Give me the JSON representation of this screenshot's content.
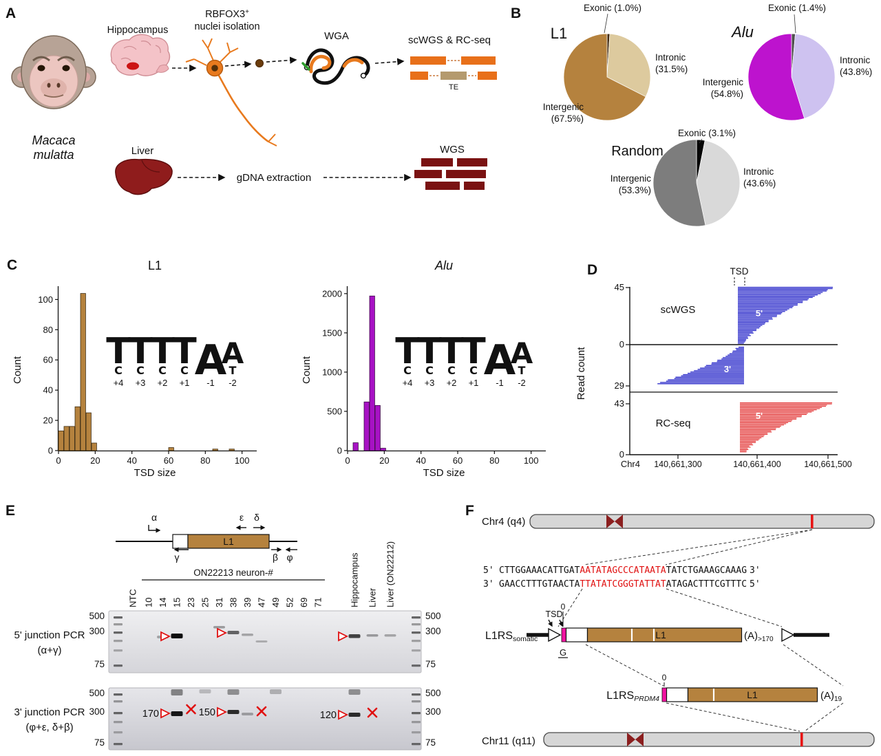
{
  "panels": {
    "A": "A",
    "B": "B",
    "C": "C",
    "D": "D",
    "E": "E",
    "F": "F"
  },
  "panelA": {
    "species_line1": "Macaca",
    "species_line2": "mulatta",
    "hippocampus": "Hippocampus",
    "rbfox3_name": "RBFOX3",
    "rbfox3_sup": "+",
    "rbfox3_line2": "nuclei isolation",
    "wga": "WGA",
    "scwgs_rcseq": "scWGS & RC-seq",
    "te": "TE",
    "liver": "Liver",
    "gdna": "gDNA extraction",
    "wgs": "WGS"
  },
  "panelB": {
    "pies": [
      {
        "exonic": "Exonic (1.0%)",
        "intronic_1": "Intronic",
        "intronic_2": "(31.5%)",
        "intergenic_1": "Intergenic",
        "intergenic_2": "(67.5%)"
      },
      {
        "exonic": "Exonic (1.4%)",
        "intronic_1": "Intronic",
        "intronic_2": "(43.8%)",
        "intergenic_1": "Intergenic",
        "intergenic_2": "(54.8%)"
      },
      {
        "exonic": "Exonic (3.1%)",
        "intronic_1": "Intronic",
        "intronic_2": "(43.6%)",
        "intergenic_1": "Intergenic",
        "intergenic_2": "(53.3%)"
      }
    ]
  },
  "panelC": {
    "logo_positions": [
      "+4",
      "+3",
      "+2",
      "+1",
      "-1",
      "-2"
    ],
    "logo_stack": [
      [
        [
          "T",
          52
        ],
        [
          "C",
          16
        ]
      ],
      [
        [
          "T",
          52
        ],
        [
          "C",
          16
        ]
      ],
      [
        [
          "T",
          52
        ],
        [
          "C",
          16
        ]
      ],
      [
        [
          "T",
          52
        ],
        [
          "C",
          16
        ]
      ],
      [
        [
          "A",
          60
        ]
      ],
      [
        [
          "A",
          42
        ],
        [
          "T",
          16
        ]
      ]
    ]
  },
  "panelD": {
    "ylabel": "Read count",
    "zero": "0"
  },
  "panelE": {
    "header": "ON22213 neuron-#",
    "lanes": [
      "NTC",
      "10",
      "14",
      "15",
      "23",
      "25",
      "31",
      "38",
      "39",
      "47",
      "49",
      "52",
      "69",
      "71",
      "Hippocampus",
      "Liver",
      "Liver (ON22212)"
    ],
    "ladder": [
      "500",
      "300",
      "75"
    ],
    "row1_label1": "5' junction PCR",
    "row1_label2": "(α+γ)",
    "row2_label1": "3' junction PCR",
    "row2_label2": "(φ+ε, δ+β)",
    "primers": {
      "alpha": "α",
      "gamma": "γ",
      "epsilon": "ε",
      "delta": "δ",
      "beta": "β",
      "phi": "φ",
      "l1": "L1"
    },
    "gel1_bands": [
      {
        "lane": "14",
        "y": 199,
        "h": 4,
        "o": 0.3
      },
      {
        "lane": "15",
        "y": 196,
        "h": 7,
        "o": 1
      },
      {
        "lane": "31",
        "y": 185,
        "h": 3.5,
        "o": 0.35
      },
      {
        "lane": "38",
        "y": 192,
        "h": 5,
        "o": 0.6
      },
      {
        "lane": "39",
        "y": 196,
        "h": 3.5,
        "o": 0.3
      },
      {
        "lane": "47",
        "y": 206,
        "h": 3,
        "o": 0.25
      },
      {
        "lane": "Hippocampus",
        "y": 197,
        "h": 5.5,
        "o": 0.75
      },
      {
        "lane": "Liver",
        "y": 197,
        "h": 3.5,
        "o": 0.35
      },
      {
        "lane": "Liver (ON22212)",
        "y": 197,
        "h": 3.5,
        "o": 0.3
      }
    ],
    "gel1_arrows": [
      {
        "lane": "15",
        "y": 200
      },
      {
        "lane": "38",
        "y": 195
      },
      {
        "lane": "Hippocampus",
        "y": 200
      }
    ],
    "gel2_bands": [
      {
        "lane": "15",
        "y": 309,
        "h": 7,
        "o": 0.95
      },
      {
        "lane": "15",
        "y": 277,
        "h": 9,
        "o": 0.45
      },
      {
        "lane": "38",
        "y": 307,
        "h": 6,
        "o": 0.85
      },
      {
        "lane": "38",
        "y": 277,
        "h": 8,
        "o": 0.4
      },
      {
        "lane": "39",
        "y": 311,
        "h": 4,
        "o": 0.3
      },
      {
        "lane": "49",
        "y": 277,
        "h": 7,
        "o": 0.25
      },
      {
        "lane": "25",
        "y": 277,
        "h": 6,
        "o": 0.2
      },
      {
        "lane": "Hippocampus",
        "y": 311,
        "h": 6,
        "o": 0.85
      },
      {
        "lane": "Hippocampus",
        "y": 277,
        "h": 8,
        "o": 0.4
      }
    ],
    "gel2_sizes": [
      {
        "label": "170",
        "lane": "15",
        "y": 312
      },
      {
        "label": "150",
        "lane": "38",
        "y": 310
      },
      {
        "label": "120",
        "lane": "Hippocampus",
        "y": 314
      }
    ],
    "x_marks": [
      {
        "lane": "23",
        "y": 306
      },
      {
        "lane": "47",
        "y": 309
      },
      {
        "lane": "Liver",
        "y": 311
      }
    ]
  },
  "panelF": {
    "chr4": "Chr4 (q4)",
    "chr11": "Chr11 (q11)",
    "seq_top": {
      "p5": "5'",
      "left": "CTTGGAAACATTGAT",
      "tsd": "AATATAGCCCATAATA",
      "right": "TATCTGAAAGCAAAG",
      "p3": "3'"
    },
    "seq_bottom": {
      "p3": "3'",
      "left": "GAACCTTTGTAACTA",
      "tsd": "TTATATCGGGTATTAT",
      "right": "ATAGACTTTCGTTTC",
      "p5": "5'"
    },
    "tsd": "TSD",
    "zero1": "0",
    "zero2": "0",
    "g": "G",
    "l1rs": "L1RS",
    "somatic": "somatic",
    "prdm4": "PRDM4",
    "l1a": "L1",
    "l1b": "L1",
    "polyA": "(A)",
    "polyA1_sub": ">170",
    "polyA2_sub": "19"
  },
  "chart_data": [
    {
      "type": "pie",
      "title": "L1",
      "slices": [
        {
          "label": "Exonic",
          "pct": 1.0,
          "color": "#42290e"
        },
        {
          "label": "Intronic",
          "pct": 31.5,
          "color": "#ddca9e"
        },
        {
          "label": "Intergenic",
          "pct": 67.5,
          "color": "#b5823e"
        }
      ],
      "start_angle_deg": 0,
      "clockwise": true
    },
    {
      "type": "pie",
      "title": "Alu",
      "slices": [
        {
          "label": "Exonic",
          "pct": 1.4,
          "color": "#4f4f4f"
        },
        {
          "label": "Intronic",
          "pct": 43.8,
          "color": "#cec2f0"
        },
        {
          "label": "Intergenic",
          "pct": 54.8,
          "color": "#bd13ce"
        }
      ],
      "start_angle_deg": 0,
      "clockwise": true
    },
    {
      "type": "pie",
      "title": "Random",
      "slices": [
        {
          "label": "Exonic",
          "pct": 3.1,
          "color": "#050505"
        },
        {
          "label": "Intronic",
          "pct": 43.6,
          "color": "#d9d9d9"
        },
        {
          "label": "Intergenic",
          "pct": 53.3,
          "color": "#7d7d7d"
        }
      ],
      "start_angle_deg": 0,
      "clockwise": true
    },
    {
      "type": "bar",
      "title": "L1",
      "xlabel": "TSD size",
      "ylabel": "Count",
      "xlim": [
        0,
        105
      ],
      "ylim": [
        0,
        107
      ],
      "xticks": [
        0,
        20,
        40,
        60,
        80,
        100
      ],
      "yticks": [
        0,
        20,
        40,
        60,
        80,
        100
      ],
      "bin_width": 3,
      "color": "#b5823e",
      "edge": "#3d2c12",
      "bins": [
        [
          0,
          13
        ],
        [
          3,
          16
        ],
        [
          6,
          16
        ],
        [
          9,
          29
        ],
        [
          12,
          104
        ],
        [
          15,
          25
        ],
        [
          18,
          5
        ],
        [
          60,
          2
        ],
        [
          84,
          1
        ],
        [
          93,
          1
        ]
      ]
    },
    {
      "type": "bar",
      "title": "Alu",
      "xlabel": "TSD size",
      "ylabel": "Count",
      "xlim": [
        0,
        105
      ],
      "ylim": [
        0,
        2060
      ],
      "xticks": [
        0,
        20,
        40,
        60,
        80,
        100
      ],
      "yticks": [
        0,
        500,
        1000,
        1500,
        2000
      ],
      "bin_width": 3,
      "color": "#a712c4",
      "edge": "#3d0a48",
      "bins": [
        [
          3,
          100
        ],
        [
          9,
          620
        ],
        [
          12,
          1970
        ],
        [
          15,
          575
        ],
        [
          18,
          30
        ]
      ]
    },
    {
      "type": "pileup",
      "annotation": "TSD",
      "region": {
        "chrom": "Chr4",
        "xticks": [
          "140,661,300",
          "140,661,400",
          "140,661,500"
        ]
      },
      "tracks": [
        {
          "name": "scWGS",
          "end": "5'",
          "reads": 45,
          "color": "#2424c8"
        },
        {
          "name": "scWGS",
          "end": "3'",
          "reads": 29,
          "color": "#2424c8"
        },
        {
          "name": "RC-seq",
          "end": "5'",
          "reads": 43,
          "color": "#e23030"
        }
      ]
    }
  ],
  "colors": {
    "l1_brown": "#b5823e",
    "alu_magenta": "#bd13ce",
    "scwgs_blue": "#2424c8",
    "rcseq_red": "#e23030",
    "magenta_bar": "#f012a0",
    "liver": "#8f1c1c",
    "neuron_orange": "#e87a1e"
  }
}
